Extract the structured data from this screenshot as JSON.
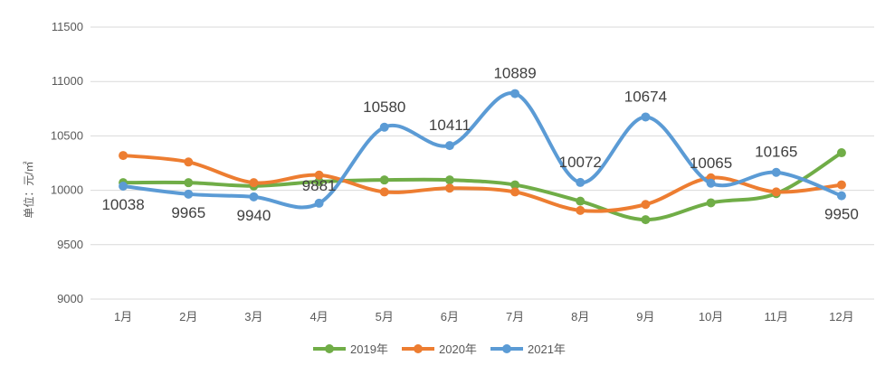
{
  "chart_data": {
    "type": "line",
    "categories": [
      "1月",
      "2月",
      "3月",
      "4月",
      "5月",
      "6月",
      "7月",
      "8月",
      "9月",
      "10月",
      "11月",
      "12月"
    ],
    "series": [
      {
        "name": "2019年",
        "color": "#70ad47",
        "values": [
          10070,
          10070,
          10040,
          10080,
          10095,
          10095,
          10050,
          9900,
          9730,
          9885,
          9970,
          10345
        ]
      },
      {
        "name": "2020年",
        "color": "#ed7d31",
        "values": [
          10320,
          10260,
          10070,
          10140,
          9985,
          10020,
          9985,
          9815,
          9870,
          10115,
          9985,
          10050
        ]
      },
      {
        "name": "2021年",
        "color": "#5b9bd5",
        "values": [
          10038,
          9965,
          9940,
          9881,
          10580,
          10411,
          10889,
          10072,
          10674,
          10065,
          10165,
          9950
        ],
        "labels": [
          "10038",
          "9965",
          "9940",
          "9881",
          "10580",
          "10411",
          "10889",
          "10072",
          "10674",
          "10065",
          "10165",
          "9950"
        ]
      }
    ],
    "yticks": [
      "9000",
      "9500",
      "10000",
      "10500",
      "11000",
      "11500"
    ],
    "ylim": [
      9000,
      11500
    ],
    "ylabel": "单位：元/㎡",
    "grid": true,
    "legend": "bottom"
  }
}
